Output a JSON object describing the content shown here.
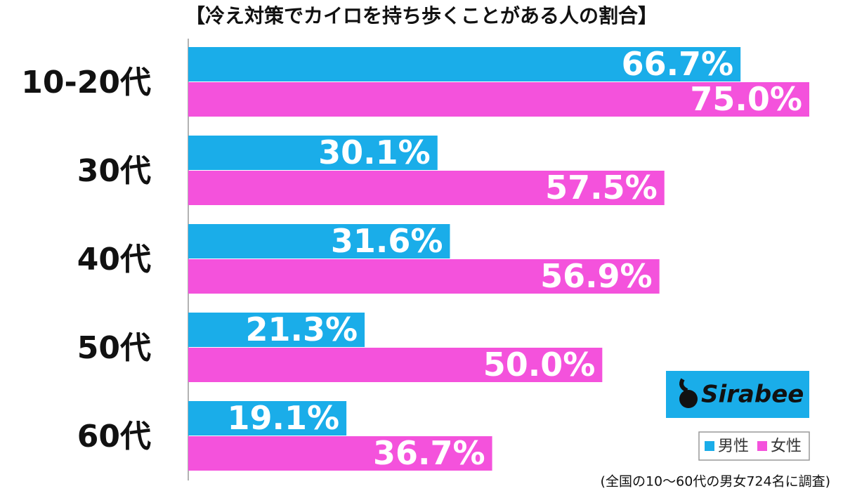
{
  "chart_data": {
    "type": "barh",
    "title": "【冷え対策でカイロを持ち歩くことがある人の割合】",
    "categories": [
      "10-20代",
      "30代",
      "40代",
      "50代",
      "60代"
    ],
    "series": [
      {
        "name": "男性",
        "color": "#1aade9",
        "values": [
          66.7,
          30.1,
          31.6,
          21.3,
          19.1
        ],
        "value_labels": [
          "66.7%",
          "30.1%",
          "31.6%",
          "21.3%",
          "19.1%"
        ]
      },
      {
        "name": "女性",
        "color": "#f452dc",
        "values": [
          75.0,
          57.5,
          56.9,
          50.0,
          36.7
        ],
        "value_labels": [
          "75.0%",
          "57.5%",
          "56.9%",
          "50.0%",
          "36.7%"
        ]
      }
    ],
    "xlim": [
      0,
      75
    ],
    "legend": "lower right",
    "logo": "Sirabee",
    "note": "(全国の10〜60代の男女724名に調査)"
  }
}
